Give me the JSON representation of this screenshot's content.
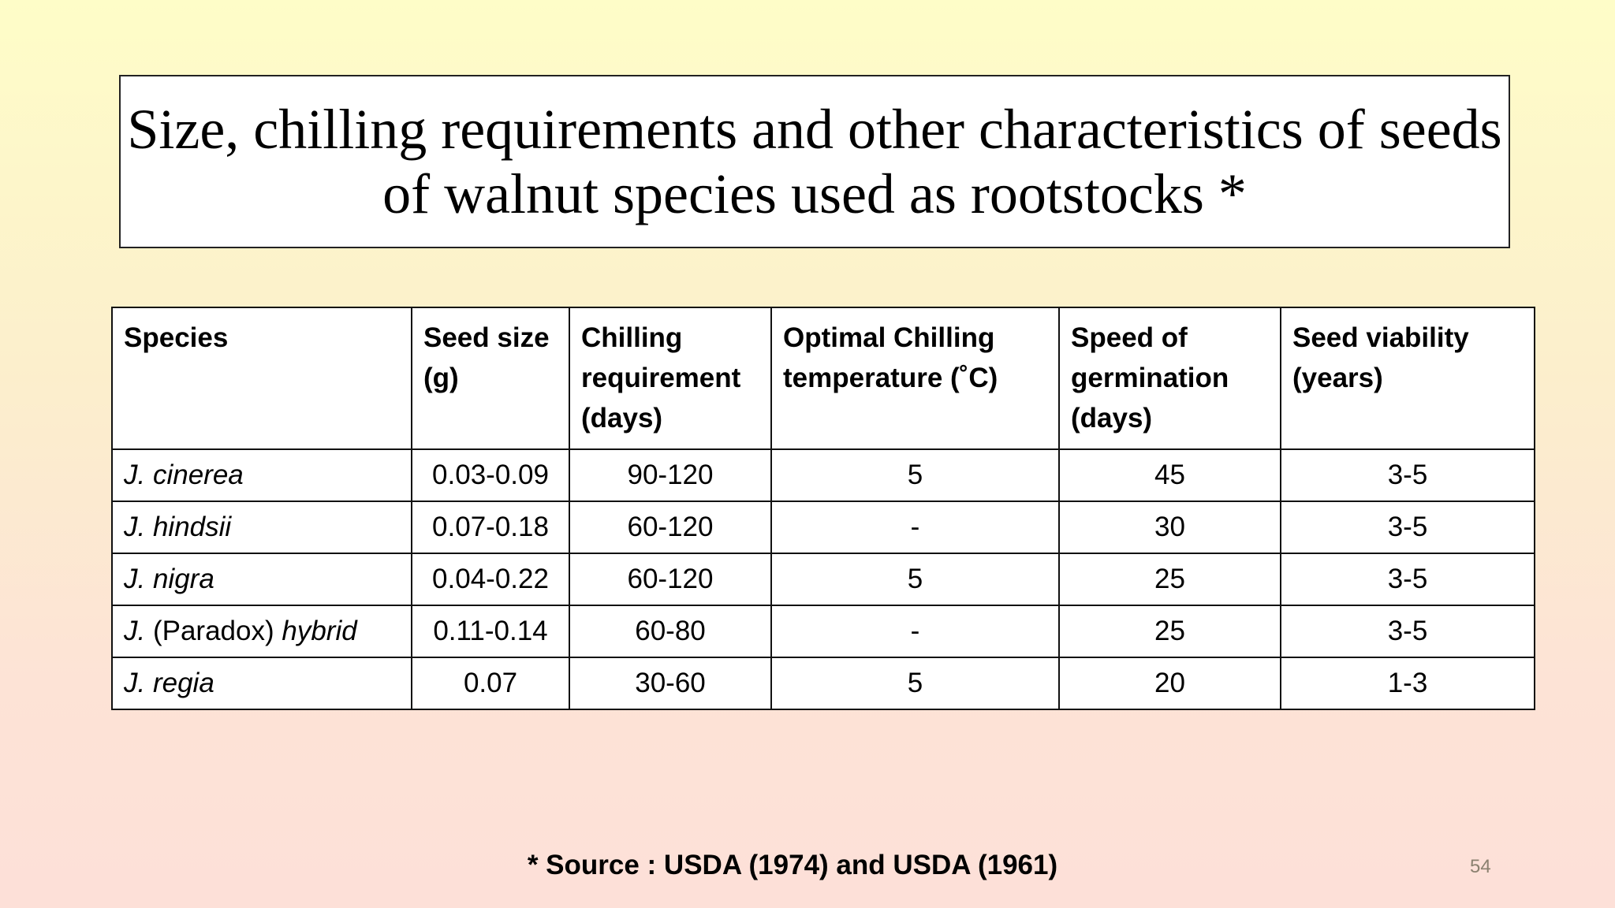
{
  "title": "Size, chilling requirements and other characteristics of seeds of walnut species used as rootstocks *",
  "table": {
    "headers": [
      "Species",
      "Seed size (g)",
      "Chilling requirement (days)",
      "Optimal Chilling temperature (˚C)",
      "Speed of germination (days)",
      "Seed viability (years)"
    ],
    "rows": [
      {
        "species_prefix": "J.",
        "species_plain": "",
        "species_italic": "cinerea",
        "seed_size": "0.03-0.09",
        "chilling": "90-120",
        "temp": "5",
        "germination": "45",
        "viability": "3-5"
      },
      {
        "species_prefix": "J.",
        "species_plain": "",
        "species_italic": "hindsii",
        "seed_size": "0.07-0.18",
        "chilling": "60-120",
        "temp": "-",
        "germination": "30",
        "viability": "3-5"
      },
      {
        "species_prefix": "J.",
        "species_plain": "",
        "species_italic": "nigra",
        "seed_size": "0.04-0.22",
        "chilling": "60-120",
        "temp": "5",
        "germination": "25",
        "viability": "3-5"
      },
      {
        "species_prefix": "J.",
        "species_plain": "(Paradox)",
        "species_italic": "hybrid",
        "seed_size": "0.11-0.14",
        "chilling": "60-80",
        "temp": "-",
        "germination": "25",
        "viability": "3-5"
      },
      {
        "species_prefix": "J.",
        "species_plain": "",
        "species_italic": "regia",
        "seed_size": "0.07",
        "chilling": "30-60",
        "temp": "5",
        "germination": "20",
        "viability": "1-3"
      }
    ]
  },
  "source": "* Source : USDA (1974) and USDA (1961)",
  "page_number": "54"
}
